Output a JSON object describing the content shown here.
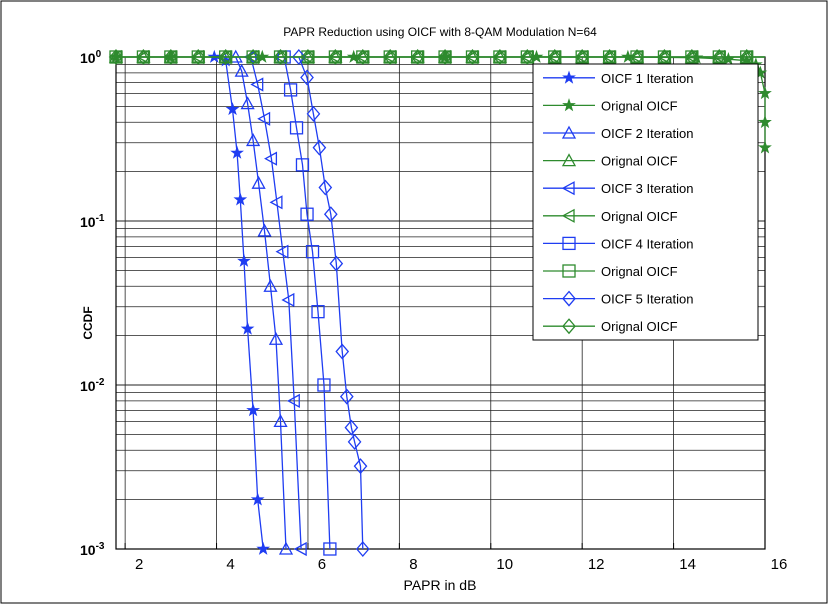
{
  "chart_data": {
    "type": "line",
    "title": "PAPR Reduction using OICF with 8-QAM Modulation N=64",
    "xlabel": "PAPR in dB",
    "ylabel": "CCDF",
    "xlim": [
      1.8,
      16
    ],
    "ylim": [
      0.001,
      1
    ],
    "yscale": "log",
    "grid": true,
    "legend_position": "top-right",
    "x_ticks": [
      2,
      4,
      6,
      8,
      10,
      12,
      14,
      16
    ],
    "x_tick_labels": [
      "2",
      "4",
      "6",
      "8",
      "10",
      "12",
      "14",
      "16"
    ],
    "y_ticks": [
      {
        "value": 1,
        "base": "10",
        "exp": "0"
      },
      {
        "value": 0.1,
        "base": "10",
        "exp": "-1"
      },
      {
        "value": 0.01,
        "base": "10",
        "exp": "-2"
      },
      {
        "value": 0.001,
        "base": "10",
        "exp": "-3"
      }
    ],
    "series": [
      {
        "name": "OICF  1 Iteration",
        "color": "#1f3df2",
        "marker": "star",
        "x": [
          3.95,
          4.2,
          4.35,
          4.45,
          4.52,
          4.6,
          4.68,
          4.8,
          4.9,
          5.02
        ],
        "y": [
          1,
          0.95,
          0.48,
          0.26,
          0.135,
          0.057,
          0.022,
          0.007,
          0.002,
          0.001
        ]
      },
      {
        "name": "Orignal OICF",
        "color": "#2e8b2e",
        "marker": "star",
        "x": [
          1.8,
          3,
          5,
          7,
          9,
          11,
          13,
          14.5,
          15.2,
          15.6,
          15.8,
          15.9,
          16,
          16,
          16
        ],
        "y": [
          1,
          1,
          1,
          1,
          1,
          1,
          1,
          0.99,
          0.97,
          0.95,
          0.9,
          0.8,
          0.6,
          0.4,
          0.28
        ]
      },
      {
        "name": "OICF  2 Iteration",
        "color": "#1f3df2",
        "marker": "triangle-up",
        "x": [
          4.42,
          4.55,
          4.68,
          4.8,
          4.92,
          5.05,
          5.18,
          5.3,
          5.4,
          5.52
        ],
        "y": [
          1,
          0.82,
          0.52,
          0.31,
          0.17,
          0.087,
          0.04,
          0.019,
          0.006,
          0.001
        ]
      },
      {
        "name": "Orignal OICF",
        "color": "#2e8b2e",
        "marker": "triangle-up",
        "x": [
          1.8,
          16
        ],
        "y": [
          1,
          1
        ]
      },
      {
        "name": "OICF  3 Iteration",
        "color": "#1f3df2",
        "marker": "triangle-left",
        "x": [
          4.75,
          4.9,
          5.05,
          5.2,
          5.32,
          5.45,
          5.58,
          5.7,
          5.85
        ],
        "y": [
          1,
          0.68,
          0.42,
          0.24,
          0.13,
          0.065,
          0.033,
          0.008,
          0.001
        ]
      },
      {
        "name": "Orignal OICF",
        "color": "#2e8b2e",
        "marker": "triangle-left",
        "x": [
          1.8,
          16
        ],
        "y": [
          1,
          1
        ]
      },
      {
        "name": "OICF  4 Iteration",
        "color": "#1f3df2",
        "marker": "square",
        "x": [
          5.48,
          5.62,
          5.75,
          5.88,
          5.98,
          6.1,
          6.22,
          6.35,
          6.48
        ],
        "y": [
          1,
          0.63,
          0.37,
          0.22,
          0.11,
          0.065,
          0.028,
          0.01,
          0.001
        ]
      },
      {
        "name": "Orignal OICF",
        "color": "#2e8b2e",
        "marker": "square",
        "x": [
          1.8,
          16
        ],
        "y": [
          1,
          1
        ]
      },
      {
        "name": "OICF  5 Iteration",
        "color": "#1f3df2",
        "marker": "diamond",
        "x": [
          5.8,
          5.98,
          6.12,
          6.25,
          6.38,
          6.5,
          6.62,
          6.75,
          6.85,
          6.95,
          7.02,
          7.15,
          7.2
        ],
        "y": [
          1,
          0.75,
          0.45,
          0.28,
          0.16,
          0.11,
          0.055,
          0.016,
          0.0085,
          0.0055,
          0.0045,
          0.0032,
          0.001
        ]
      },
      {
        "name": "Orignal OICF",
        "color": "#2e8b2e",
        "marker": "diamond",
        "x": [
          1.8,
          16
        ],
        "y": [
          1,
          1
        ]
      }
    ]
  }
}
